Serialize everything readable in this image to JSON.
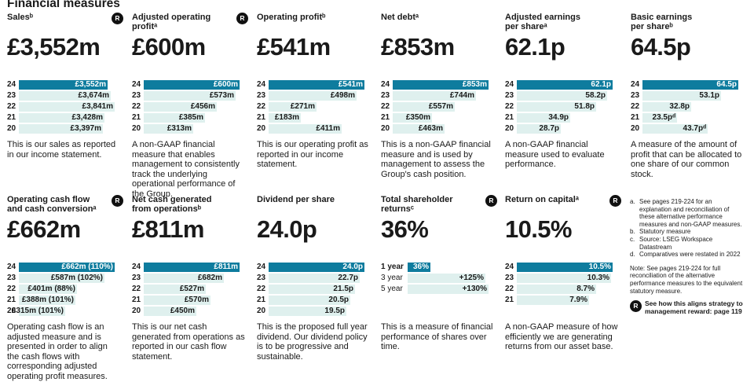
{
  "title": "Financial measures",
  "badge": "R",
  "panels": [
    {
      "header": "Salesᵇ",
      "badge": true,
      "big": "£3,552m",
      "rows": [
        {
          "label": "24",
          "value": "£3,552m",
          "frac": 0.93,
          "current": true
        },
        {
          "label": "23",
          "value": "£3,674m",
          "frac": 0.96
        },
        {
          "label": "22",
          "value": "£3,841m",
          "frac": 1.0
        },
        {
          "label": "21",
          "value": "£3,428m",
          "frac": 0.89
        },
        {
          "label": "20",
          "value": "£3,397m",
          "frac": 0.88
        }
      ],
      "description": "This is our sales as reported in our income statement."
    },
    {
      "header": "Adjusted operating\nprofitᵃ",
      "badge": true,
      "big": "£600m",
      "rows": [
        {
          "label": "24",
          "value": "£600m",
          "frac": 1.0,
          "current": true
        },
        {
          "label": "23",
          "value": "£573m",
          "frac": 0.96
        },
        {
          "label": "22",
          "value": "£456m",
          "frac": 0.76
        },
        {
          "label": "21",
          "value": "£385m",
          "frac": 0.64
        },
        {
          "label": "20",
          "value": "£313m",
          "frac": 0.52
        }
      ],
      "description": "A non-GAAP financial measure that enables management to consistently track the underlying operational performance of the Group."
    },
    {
      "header": "Operating profitᵇ",
      "badge": false,
      "big": "£541m",
      "rows": [
        {
          "label": "24",
          "value": "£541m",
          "frac": 1.0,
          "current": true
        },
        {
          "label": "23",
          "value": "£498m",
          "frac": 0.92
        },
        {
          "label": "22",
          "value": "£271m",
          "frac": 0.5
        },
        {
          "label": "21",
          "value": "£183m",
          "frac": 0.34
        },
        {
          "label": "20",
          "value": "£411m",
          "frac": 0.76
        }
      ],
      "description": "This is our operating profit as reported in our income statement."
    },
    {
      "header": "Net debtᵃ",
      "badge": false,
      "big": "£853m",
      "rows": [
        {
          "label": "24",
          "value": "£853m",
          "frac": 1.0,
          "current": true
        },
        {
          "label": "23",
          "value": "£744m",
          "frac": 0.87
        },
        {
          "label": "22",
          "value": "£557m",
          "frac": 0.65
        },
        {
          "label": "21",
          "value": "£350m",
          "frac": 0.41
        },
        {
          "label": "20",
          "value": "£463m",
          "frac": 0.54
        }
      ],
      "description": "This is a non-GAAP financial measure and is used by management to assess the Group's cash position."
    },
    {
      "header": "Adjusted earnings\nper shareᵃ",
      "badge": false,
      "big": "62.1p",
      "rows": [
        {
          "label": "24",
          "value": "62.1p",
          "frac": 1.0,
          "current": true
        },
        {
          "label": "23",
          "value": "58.2p",
          "frac": 0.94
        },
        {
          "label": "22",
          "value": "51.8p",
          "frac": 0.83
        },
        {
          "label": "21",
          "value": "34.9p",
          "frac": 0.56
        },
        {
          "label": "20",
          "value": "28.7p",
          "frac": 0.46
        }
      ],
      "description": "A non-GAAP financial measure used to evaluate performance."
    },
    {
      "header": "Basic earnings\nper shareᵇ",
      "badge": false,
      "big": "64.5p",
      "rows": [
        {
          "label": "24",
          "value": "64.5p",
          "frac": 1.0,
          "current": true
        },
        {
          "label": "23",
          "value": "53.1p",
          "frac": 0.82
        },
        {
          "label": "22",
          "value": "32.8p",
          "frac": 0.51
        },
        {
          "label": "21",
          "value": "23.5pᵈ",
          "frac": 0.36
        },
        {
          "label": "20",
          "value": "43.7pᵈ",
          "frac": 0.68
        }
      ],
      "description": "A measure of the amount of profit that can be allocated to one share of our common stock."
    },
    {
      "header": "Operating cash flow\nand cash conversionᵃ",
      "badge": true,
      "big": "£662m",
      "rows": [
        {
          "label": "24",
          "value": "£662m (110%)",
          "frac": 1.0,
          "current": true
        },
        {
          "label": "23",
          "value": "£587m (102%)",
          "frac": 0.89
        },
        {
          "label": "22",
          "value": "£401m (88%)",
          "frac": 0.61
        },
        {
          "label": "21",
          "value": "£388m (101%)",
          "frac": 0.59
        },
        {
          "label": "20",
          "value": "£315m (101%)",
          "frac": 0.48
        }
      ],
      "description": "Operating cash flow is an adjusted measure and is presented in order to align the cash flows with corresponding adjusted operating profit measures."
    },
    {
      "header": "Net cash generated\nfrom operationsᵇ",
      "badge": false,
      "big": "£811m",
      "rows": [
        {
          "label": "24",
          "value": "£811m",
          "frac": 1.0,
          "current": true
        },
        {
          "label": "23",
          "value": "£682m",
          "frac": 0.84
        },
        {
          "label": "22",
          "value": "£527m",
          "frac": 0.65
        },
        {
          "label": "21",
          "value": "£570m",
          "frac": 0.7
        },
        {
          "label": "20",
          "value": "£450m",
          "frac": 0.55
        }
      ],
      "description": "This is our net cash generated from operations as reported in our cash flow statement."
    },
    {
      "header": "Dividend per share",
      "badge": false,
      "big": "24.0p",
      "rows": [
        {
          "label": "24",
          "value": "24.0p",
          "frac": 1.0,
          "current": true
        },
        {
          "label": "23",
          "value": "22.7p",
          "frac": 0.95
        },
        {
          "label": "22",
          "value": "21.5p",
          "frac": 0.9
        },
        {
          "label": "21",
          "value": "20.5p",
          "frac": 0.85
        },
        {
          "label": "20",
          "value": "19.5p",
          "frac": 0.81
        }
      ],
      "description": "This is the proposed full year dividend. Our dividend policy is to be progressive and sustainable."
    },
    {
      "header": "Total shareholder\nreturnsᶜ",
      "badge": true,
      "big": "36%",
      "rows": [
        {
          "label": "1 year",
          "value": "36%",
          "frac": 0.28,
          "current": true
        },
        {
          "label": "3 year",
          "value": "+125%",
          "frac": 0.96,
          "light": true
        },
        {
          "label": "5 year",
          "value": "+130%",
          "frac": 1.0,
          "light": true
        }
      ],
      "description": "This is a measure of financial performance of shares over time."
    },
    {
      "header": "Return on capitalᵃ",
      "badge": true,
      "big": "10.5%",
      "rows": [
        {
          "label": "24",
          "value": "10.5%",
          "frac": 1.0,
          "current": true
        },
        {
          "label": "23",
          "value": "10.3%",
          "frac": 0.98
        },
        {
          "label": "22",
          "value": "8.7%",
          "frac": 0.83
        },
        {
          "label": "21",
          "value": "7.9%",
          "frac": 0.75
        }
      ],
      "description": "A non-GAAP measure of how efficiently we are generating returns from our asset base."
    }
  ],
  "notes": [
    {
      "letter": "a.",
      "text": "See pages 219-224 for an explanation and reconciliation of these alternative performance measures and non-GAAP measures."
    },
    {
      "letter": "b.",
      "text": "Statutory measure"
    },
    {
      "letter": "c.",
      "text": "Source: LSEG Workspace Datastream"
    },
    {
      "letter": "d.",
      "text": "Comparatives were restated in 2022"
    }
  ],
  "note_extra": "Note: See pages 219-224 for full reconciliation of the alternative performance measures to the equivalent statutory measure.",
  "note_link": "See how this aligns strategy to management reward: page 119",
  "colors": {
    "current_bar": "#0e7c9e",
    "history_bar": "#dff0ee"
  }
}
